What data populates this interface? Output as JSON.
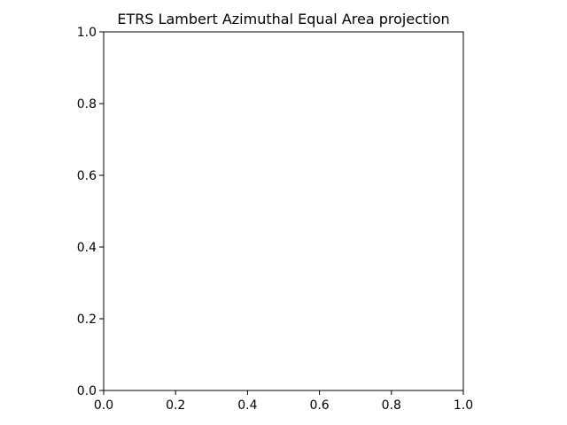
{
  "chart_data": {
    "type": "scatter",
    "title": "ETRS Lambert Azimuthal Equal Area projection",
    "xlabel": "",
    "ylabel": "",
    "xlim": [
      0.0,
      1.0
    ],
    "ylim": [
      0.0,
      1.0
    ],
    "xticks": [
      0.0,
      0.2,
      0.4,
      0.6,
      0.8,
      1.0
    ],
    "yticks": [
      0.0,
      0.2,
      0.4,
      0.6,
      0.8,
      1.0
    ],
    "xtick_labels": [
      "0.0",
      "0.2",
      "0.4",
      "0.6",
      "0.8",
      "1.0"
    ],
    "ytick_labels": [
      "0.0",
      "0.2",
      "0.4",
      "0.6",
      "0.8",
      "1.0"
    ],
    "series": [],
    "grid": false,
    "colors": {
      "background": "#ffffff",
      "axes": "#000000",
      "text": "#000000"
    }
  }
}
